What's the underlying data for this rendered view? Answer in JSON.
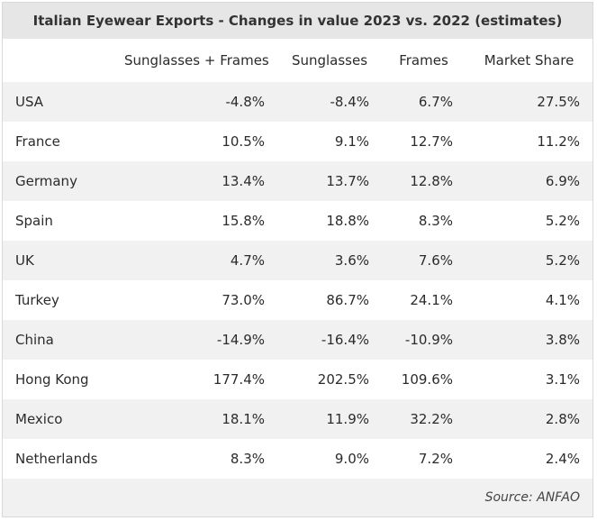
{
  "title": "Italian Eyewear Exports - Changes in value 2023 vs. 2022 (estimates)",
  "columns": [
    "",
    "Sunglasses + Frames",
    "Sunglasses",
    "Frames",
    "Market Share"
  ],
  "rows": [
    {
      "country": "USA",
      "sf": "-4.8%",
      "sun": "-8.4%",
      "frames": "6.7%",
      "share": "27.5%"
    },
    {
      "country": "France",
      "sf": "10.5%",
      "sun": "9.1%",
      "frames": "12.7%",
      "share": "11.2%"
    },
    {
      "country": "Germany",
      "sf": "13.4%",
      "sun": "13.7%",
      "frames": "12.8%",
      "share": "6.9%"
    },
    {
      "country": "Spain",
      "sf": "15.8%",
      "sun": "18.8%",
      "frames": "8.3%",
      "share": "5.2%"
    },
    {
      "country": "UK",
      "sf": "4.7%",
      "sun": "3.6%",
      "frames": "7.6%",
      "share": "5.2%"
    },
    {
      "country": "Turkey",
      "sf": "73.0%",
      "sun": "86.7%",
      "frames": "24.1%",
      "share": "4.1%"
    },
    {
      "country": "China",
      "sf": "-14.9%",
      "sun": "-16.4%",
      "frames": "-10.9%",
      "share": "3.8%"
    },
    {
      "country": "Hong Kong",
      "sf": "177.4%",
      "sun": "202.5%",
      "frames": "109.6%",
      "share": "3.1%"
    },
    {
      "country": "Mexico",
      "sf": "18.1%",
      "sun": "11.9%",
      "frames": "32.2%",
      "share": "2.8%"
    },
    {
      "country": "Netherlands",
      "sf": "8.3%",
      "sun": "9.0%",
      "frames": "7.2%",
      "share": "2.4%"
    }
  ],
  "source": "Source: ANFAO"
}
